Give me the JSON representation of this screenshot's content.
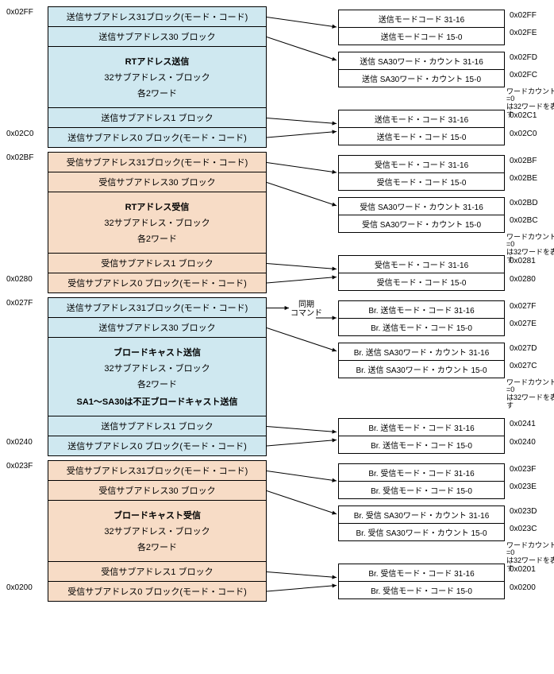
{
  "colors": {
    "blue": "#cfe8f0",
    "orange": "#f7dcc6",
    "border": "#000000",
    "bg": "#ffffff"
  },
  "groups": [
    {
      "addr_top": "0x02FF",
      "addr_bot": "0x02C0",
      "color": "blue",
      "rows": [
        "送信サブアドレス31ブロック(モード・コード)",
        "送信サブアドレス30 ブロック",
        [
          "RTアドレス送信",
          "32サブアドレス・ブロック",
          "各2ワード"
        ],
        "送信サブアドレス1 ブロック",
        "送信サブアドレス0 ブロック(モード・コード)"
      ],
      "right": [
        {
          "lines": [
            "送信モードコード 31-16",
            "送信モードコード 15-0"
          ],
          "addrs": [
            "0x02FF",
            "0x02FE"
          ],
          "note": ""
        },
        {
          "lines": [
            "送信 SA30ワード・カウント 31-16",
            "送信 SA30ワード・カウント 15-0"
          ],
          "addrs": [
            "0x02FD",
            "0x02FC"
          ],
          "note": "ワードカウント=0\nは32ワードを表す"
        },
        {
          "lines": [
            "送信モード・コード 31-16",
            "送信モード・コード 15-0"
          ],
          "addrs": [
            "0x02C1",
            "0x02C0"
          ],
          "note": ""
        }
      ]
    },
    {
      "addr_top": "0x02BF",
      "addr_bot": "0x0280",
      "color": "orange",
      "rows": [
        "受信サブアドレス31ブロック(モード・コード)",
        "受信サブアドレス30 ブロック",
        [
          "RTアドレス受信",
          "32サブアドレス・ブロック",
          "各2ワード"
        ],
        "受信サブアドレス1 ブロック",
        "受信サブアドレス0 ブロック(モード・コード)"
      ],
      "right": [
        {
          "lines": [
            "受信モード・コード 31-16",
            "受信モード・コード 15-0"
          ],
          "addrs": [
            "0x02BF",
            "0x02BE"
          ],
          "note": ""
        },
        {
          "lines": [
            "受信 SA30ワード・カウント 31-16",
            "受信 SA30ワード・カウント 15-0"
          ],
          "addrs": [
            "0x02BD",
            "0x02BC"
          ],
          "note": "ワードカウント=0\nは32ワードを表す"
        },
        {
          "lines": [
            "受信モード・コード 31-16",
            "受信モード・コード 15-0"
          ],
          "addrs": [
            "0x0281",
            "0x0280"
          ],
          "note": ""
        }
      ]
    },
    {
      "addr_top": "0x027F",
      "addr_bot": "0x0240",
      "color": "blue",
      "rows": [
        "送信サブアドレス31ブロック(モード・コード)",
        "送信サブアドレス30 ブロック",
        [
          "ブロードキャスト送信",
          "32サブアドレス・ブロック",
          "各2ワード",
          "SA1～SA30は不正ブロードキャスト送信"
        ],
        "送信サブアドレス1 ブロック",
        "送信サブアドレス0 ブロック(モード・コード)"
      ],
      "sync": "同期\nコマンド",
      "right": [
        {
          "lines": [
            "Br. 送信モード・コード 31-16",
            "Br. 送信モード・コード 15-0"
          ],
          "addrs": [
            "0x027F",
            "0x027E"
          ],
          "note": ""
        },
        {
          "lines": [
            "Br. 送信 SA30ワード・カウント 31-16",
            "Br. 送信 SA30ワード・カウント 15-0"
          ],
          "addrs": [
            "0x027D",
            "0x027C"
          ],
          "note": "ワードカウント=0\nは32ワードを表す"
        },
        {
          "lines": [
            "Br. 送信モード・コード 31-16",
            "Br. 送信モード・コード 15-0"
          ],
          "addrs": [
            "0x0241",
            "0x0240"
          ],
          "note": ""
        }
      ]
    },
    {
      "addr_top": "0x023F",
      "addr_bot": "0x0200",
      "color": "orange",
      "rows": [
        "受信サブアドレス31ブロック(モード・コード)",
        "受信サブアドレス30 ブロック",
        [
          "ブロードキャスト受信",
          "32サブアドレス・ブロック",
          "各2ワード"
        ],
        "受信サブアドレス1 ブロック",
        "受信サブアドレス0 ブロック(モード・コード)"
      ],
      "right": [
        {
          "lines": [
            "Br. 受信モード・コード 31-16",
            "Br. 受信モード・コード 15-0"
          ],
          "addrs": [
            "0x023F",
            "0x023E"
          ],
          "note": ""
        },
        {
          "lines": [
            "Br. 受信 SA30ワード・カウント 31-16",
            "Br. 受信 SA30ワード・カウント 15-0"
          ],
          "addrs": [
            "0x023D",
            "0x023C"
          ],
          "note": "ワードカウント=0\nは32ワードを表す"
        },
        {
          "lines": [
            "Br. 受信モード・コード 31-16",
            "Br. 受信モード・コード 15-0"
          ],
          "addrs": [
            "0x0201",
            "0x0200"
          ],
          "note": ""
        }
      ]
    }
  ]
}
